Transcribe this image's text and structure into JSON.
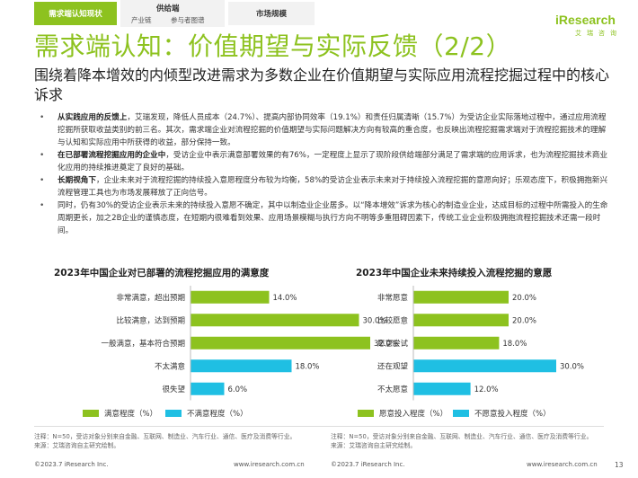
{
  "tabs": {
    "active": "需求端认知现状",
    "group_main": "供给端",
    "group_sub1": "产业链",
    "group_sub2": "参与者图谱",
    "market": "市场规模"
  },
  "logo": {
    "name": "iResearch",
    "cn": "艾瑞咨询"
  },
  "page_title": "需求端认知：价值期望与实际反馈（2/2）",
  "subtitle": "围绕着降本增效的内倾型改进需求为多数企业在价值期望与实际应用流程挖掘过程中的核心诉求",
  "bullets": [
    {
      "bold": "从实践应用的反馈上",
      "text": "，艾瑞发现，降低人员成本（24.7%）、提高内部协同效率（19.1%）和责任归属清晰（15.7%）为受访企业实际落地过程中，通过应用流程挖掘所获取收益类别的前三名。其次，需求端企业对流程挖掘的价值期望与实际问题解决方向有较高的重合度，也反映出流程挖掘需求端对于流程挖掘技术的理解与认知和实际应用中所获得的收益，部分保持一致。"
    },
    {
      "bold": "在已部署流程挖掘应用的企业中",
      "text": "，受访企业中表示满意部署效果的有76%，一定程度上显示了现阶段供给端部分满足了需求端的应用诉求，也为流程挖掘技术商业化应用的持续推进奠定了良好的基础。"
    },
    {
      "bold": "长期视角下",
      "text": "，企业未来对于流程挖掘的持续投入意愿程度分布较为均衡，58%的受访企业表示未来对于持续投入流程挖掘的意愿向好；乐观态度下，积极拥抱新兴流程管理工具也为市场发展释放了正向信号。"
    },
    {
      "bold": "",
      "text": "同时，仍有30%的受访企业表示未来的持续投入意愿不确定，其中以制造业企业居多。以“降本增效”诉求为核心的制造业企业，达成目标的过程中所需投入的生命周期更长，加之2B企业的谨慎态度，在短期内很难看到效果、应用场景模糊与执行方向不明等多重阻碍因素下，传统工业企业积极拥抱流程挖掘技术还需一段时间。"
    }
  ],
  "chart_data": [
    {
      "type": "bar",
      "orientation": "horizontal",
      "title": "2023年中国企业对已部署的流程挖掘应用的满意度",
      "categories": [
        "非常满意，超出预期",
        "比较满意，达到预期",
        "一般满意，基本符合预期",
        "不太满意",
        "很失望"
      ],
      "values": [
        14.0,
        30.0,
        32.0,
        18.0,
        6.0
      ],
      "value_labels": [
        "14.0%",
        "30.0%",
        "32.0%",
        "18.0%",
        "6.0%"
      ],
      "series_by_category": [
        "满意程度（%）",
        "满意程度（%）",
        "满意程度（%）",
        "不满意程度（%）",
        "不满意程度（%）"
      ],
      "legend": [
        {
          "name": "满意程度（%）",
          "color": "#8dc21f"
        },
        {
          "name": "不满意程度（%）",
          "color": "#1fbfe3"
        }
      ],
      "xlim": [
        0,
        40
      ],
      "legend_position": "bottom"
    },
    {
      "type": "bar",
      "orientation": "horizontal",
      "title": "2023年中国企业未来持续投入流程挖掘的意愿",
      "categories": [
        "非常愿意",
        "比较愿意",
        "愿意尝试",
        "还在观望",
        "不太愿意"
      ],
      "values": [
        20.0,
        20.0,
        18.0,
        30.0,
        12.0
      ],
      "value_labels": [
        "20.0%",
        "20.0%",
        "18.0%",
        "30.0%",
        "12.0%"
      ],
      "series_by_category": [
        "愿意投入程度（%）",
        "愿意投入程度（%）",
        "愿意投入程度（%）",
        "不愿意投入程度（%）",
        "不愿意投入程度（%）"
      ],
      "legend": [
        {
          "name": "愿意投入程度（%）",
          "color": "#8dc21f"
        },
        {
          "name": "不愿意投入程度（%）",
          "color": "#1fbfe3"
        }
      ],
      "xlim": [
        0,
        40
      ],
      "legend_position": "bottom"
    }
  ],
  "footnotes": {
    "left": "注释：N=50，受访对象分别来自金融、互联网、制造业、汽车行业、通信、医疗及消费等行业。",
    "left_source": "来源：艾瑞咨询自主研究绘制。",
    "right": "注释：N=50，受访对象分别来自金融、互联网、制造业、汽车行业、通信、医疗及消费等行业。",
    "right_source": "来源：艾瑞咨询自主研究绘制。"
  },
  "footer": {
    "copy_left": "©2023.7 iResearch Inc.",
    "url_left": "www.iresearch.com.cn",
    "copy_right": "©2023.7 iResearch Inc.",
    "url_right": "www.iresearch.com.cn",
    "page": "13"
  }
}
